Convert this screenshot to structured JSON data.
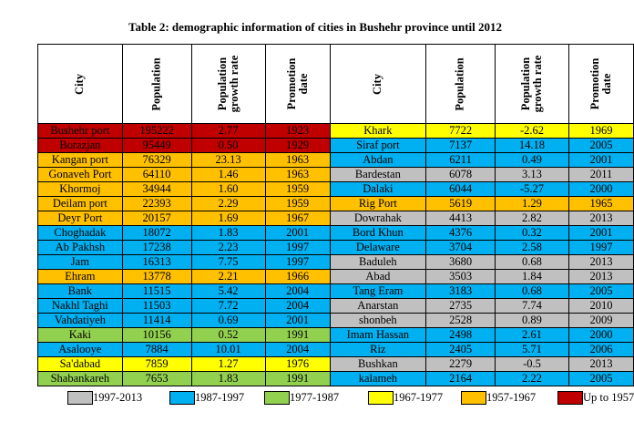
{
  "title": "Table 2: demographic information of cities in Bushehr province until 2012",
  "headers": {
    "left": [
      "City",
      "Population",
      "Population growth rate",
      "Promotion date"
    ],
    "right": [
      "City",
      "Population",
      "Population growth rate",
      "Promotion date"
    ]
  },
  "colors": {
    "gray": "#c0c0c0",
    "blue": "#00b0f0",
    "green": "#92d050",
    "yellow": "#ffff00",
    "orange": "#ffc000",
    "red": "#c00000"
  },
  "rows": [
    {
      "left": {
        "city": "Bushehr port",
        "population": "195222",
        "growth": "2.77",
        "date": "1923",
        "color": "red"
      },
      "right": {
        "city": "Khark",
        "population": "7722",
        "growth": "-2.62",
        "date": "1969",
        "color": "yellow"
      }
    },
    {
      "left": {
        "city": "Borazjan",
        "population": "95449",
        "growth": "0.50",
        "date": "1929",
        "color": "red"
      },
      "right": {
        "city": "Siraf port",
        "population": "7137",
        "growth": "14.18",
        "date": "2005",
        "color": "blue"
      }
    },
    {
      "left": {
        "city": "Kangan port",
        "population": "76329",
        "growth": "23.13",
        "date": "1963",
        "color": "orange"
      },
      "right": {
        "city": "Abdan",
        "population": "6211",
        "growth": "0.49",
        "date": "2001",
        "color": "blue"
      }
    },
    {
      "left": {
        "city": "Gonaveh Port",
        "population": "64110",
        "growth": "1.46",
        "date": "1963",
        "color": "orange"
      },
      "right": {
        "city": "Bardestan",
        "population": "6078",
        "growth": "3.13",
        "date": "2011",
        "color": "gray"
      }
    },
    {
      "left": {
        "city": "Khormoj",
        "population": "34944",
        "growth": "1.60",
        "date": "1959",
        "color": "orange"
      },
      "right": {
        "city": "Dalaki",
        "population": "6044",
        "growth": "-5.27",
        "date": "2000",
        "color": "blue"
      }
    },
    {
      "left": {
        "city": "Deilam port",
        "population": "22393",
        "growth": "2.29",
        "date": "1959",
        "color": "orange"
      },
      "right": {
        "city": "Rig Port",
        "population": "5619",
        "growth": "1.29",
        "date": "1965",
        "color": "orange"
      }
    },
    {
      "left": {
        "city": "Deyr Port",
        "population": "20157",
        "growth": "1.69",
        "date": "1967",
        "color": "orange"
      },
      "right": {
        "city": "Dowrahak",
        "population": "4413",
        "growth": "2.82",
        "date": "2013",
        "color": "gray"
      }
    },
    {
      "left": {
        "city": "Choghadak",
        "population": "18072",
        "growth": "1.83",
        "date": "2001",
        "color": "blue"
      },
      "right": {
        "city": "Bord Khun",
        "population": "4376",
        "growth": "0.32",
        "date": "2001",
        "color": "blue"
      }
    },
    {
      "left": {
        "city": "Ab Pakhsh",
        "population": "17238",
        "growth": "2.23",
        "date": "1997",
        "color": "blue"
      },
      "right": {
        "city": "Delaware",
        "population": "3704",
        "growth": "2.58",
        "date": "1997",
        "color": "blue"
      }
    },
    {
      "left": {
        "city": "Jam",
        "population": "16313",
        "growth": "7.75",
        "date": "1997",
        "color": "blue"
      },
      "right": {
        "city": "Baduleh",
        "population": "3680",
        "growth": "0.68",
        "date": "2013",
        "color": "gray"
      }
    },
    {
      "left": {
        "city": "Ehram",
        "population": "13778",
        "growth": "2.21",
        "date": "1966",
        "color": "orange"
      },
      "right": {
        "city": "Abad",
        "population": "3503",
        "growth": "1.84",
        "date": "2013",
        "color": "gray"
      }
    },
    {
      "left": {
        "city": "Bank",
        "population": "11515",
        "growth": "5.42",
        "date": "2004",
        "color": "blue"
      },
      "right": {
        "city": "Tang Eram",
        "population": "3183",
        "growth": "0.68",
        "date": "2005",
        "color": "blue"
      }
    },
    {
      "left": {
        "city": "Nakhl Taghi",
        "population": "11503",
        "growth": "7.72",
        "date": "2004",
        "color": "blue"
      },
      "right": {
        "city": "Anarstan",
        "population": "2735",
        "growth": "7.74",
        "date": "2010",
        "color": "gray"
      }
    },
    {
      "left": {
        "city": "Vahdatiyeh",
        "population": "11414",
        "growth": "0.69",
        "date": "2001",
        "color": "blue"
      },
      "right": {
        "city": "shonbeh",
        "population": "2528",
        "growth": "0.89",
        "date": "2009",
        "color": "gray"
      }
    },
    {
      "left": {
        "city": "Kaki",
        "population": "10156",
        "growth": "0.52",
        "date": "1991",
        "color": "green"
      },
      "right": {
        "city": "Imam Hassan",
        "population": "2498",
        "growth": "2.61",
        "date": "2000",
        "color": "blue"
      }
    },
    {
      "left": {
        "city": "Asalooye",
        "population": "7884",
        "growth": "10.01",
        "date": "2004",
        "color": "blue"
      },
      "right": {
        "city": "Riz",
        "population": "2405",
        "growth": "5.71",
        "date": "2006",
        "color": "blue"
      }
    },
    {
      "left": {
        "city": "Sa'dabad",
        "population": "7859",
        "growth": "1.27",
        "date": "1976",
        "color": "yellow"
      },
      "right": {
        "city": "Bushkan",
        "population": "2279",
        "growth": "-0.5",
        "date": "2013",
        "color": "gray"
      }
    },
    {
      "left": {
        "city": "Shabankareh",
        "population": "7653",
        "growth": "1.83",
        "date": "1991",
        "color": "green"
      },
      "right": {
        "city": "kalameh",
        "population": "2164",
        "growth": "2.22",
        "date": "2005",
        "color": "blue"
      }
    }
  ],
  "legend": [
    {
      "label": "1997-2013",
      "color": "gray"
    },
    {
      "label": "1987-1997",
      "color": "blue"
    },
    {
      "label": "1977-1987",
      "color": "green"
    },
    {
      "label": "1967-1977",
      "color": "yellow"
    },
    {
      "label": "1957-1967",
      "color": "orange"
    },
    {
      "label": "Up to 1957",
      "color": "red"
    }
  ]
}
